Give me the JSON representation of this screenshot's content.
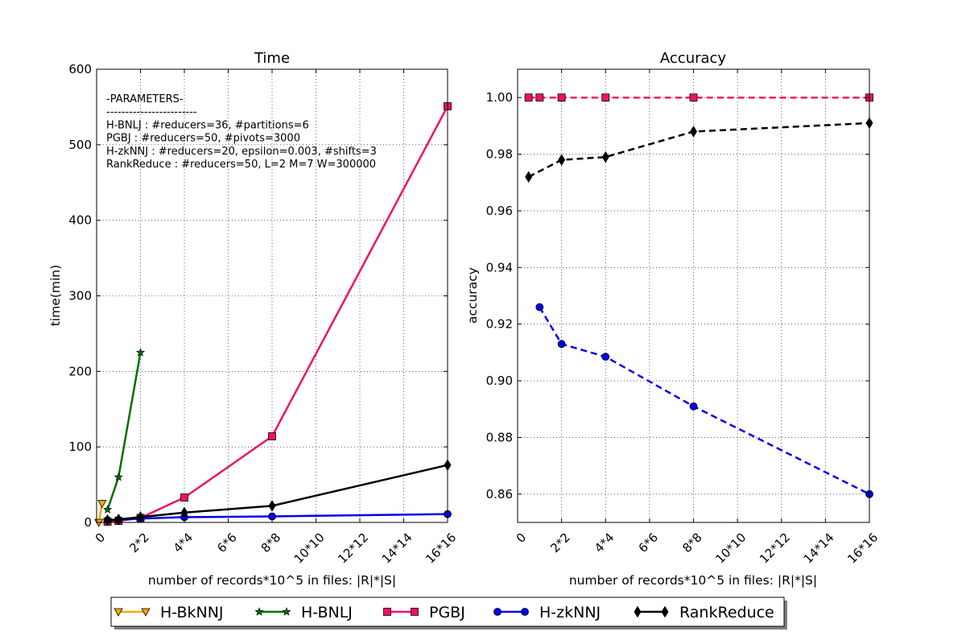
{
  "chart_data": [
    {
      "type": "line",
      "title": "Time",
      "xlabel": "number of records*10^5 in files: |R|*|S|",
      "ylabel": "time(min)",
      "xlim": [
        0,
        16
      ],
      "ylim": [
        0,
        600
      ],
      "grid": true,
      "x_ticks": [
        0,
        2,
        4,
        6,
        8,
        10,
        12,
        14,
        16
      ],
      "x_tick_labels": [
        "0",
        "2*2",
        "4*4",
        "6*6",
        "8*8",
        "10*10",
        "12*12",
        "14*14",
        "16*16"
      ],
      "y_ticks": [
        0,
        100,
        200,
        300,
        400,
        500,
        600
      ],
      "y_tick_labels": [
        "0",
        "100",
        "200",
        "300",
        "400",
        "500",
        "600"
      ],
      "annotation": [
        "-PARAMETERS-",
        "------------------------",
        "H-BNLJ : #reducers=36, #partitions=6",
        "PGBJ : #reducers=50, #pivots=3000",
        "H-zkNNJ : #reducers=20, epsilon=0.003, #shifts=3",
        "RankReduce : #reducers=50, L=2 M=7 W=300000"
      ],
      "series": [
        {
          "name": "H-BkNNJ",
          "x": [
            0.1,
            0.25
          ],
          "y": [
            0,
            25
          ]
        },
        {
          "name": "H-BNLJ",
          "x": [
            0.5,
            1,
            2
          ],
          "y": [
            17,
            60,
            225
          ]
        },
        {
          "name": "PGBJ",
          "x": [
            0.5,
            1,
            2,
            4,
            8,
            16
          ],
          "y": [
            1,
            2,
            6,
            33,
            114,
            551
          ]
        },
        {
          "name": "H-zkNNJ",
          "x": [
            0.5,
            1,
            2,
            4,
            8,
            16
          ],
          "y": [
            3,
            3.5,
            5,
            7,
            8,
            11
          ]
        },
        {
          "name": "RankReduce",
          "x": [
            0.5,
            1,
            2,
            4,
            8,
            16
          ],
          "y": [
            3,
            4,
            7,
            13,
            22,
            76
          ]
        }
      ]
    },
    {
      "type": "line",
      "title": "Accuracy",
      "xlabel": "number of records*10^5 in files: |R|*|S|",
      "ylabel": "accuracy",
      "xlim": [
        0,
        16
      ],
      "ylim": [
        0.85,
        1.01
      ],
      "grid": true,
      "x_ticks": [
        0,
        2,
        4,
        6,
        8,
        10,
        12,
        14,
        16
      ],
      "x_tick_labels": [
        "0",
        "2*2",
        "4*4",
        "6*6",
        "8*8",
        "10*10",
        "12*12",
        "14*14",
        "16*16"
      ],
      "y_ticks": [
        0.86,
        0.88,
        0.9,
        0.92,
        0.94,
        0.96,
        0.98,
        1.0
      ],
      "y_tick_labels": [
        "0.86",
        "0.88",
        "0.90",
        "0.92",
        "0.94",
        "0.96",
        "0.98",
        "1.00"
      ],
      "series": [
        {
          "name": "PGBJ",
          "x": [
            0.5,
            1,
            2,
            4,
            8,
            16
          ],
          "y": [
            1.0,
            1.0,
            1.0,
            1.0,
            1.0,
            1.0
          ]
        },
        {
          "name": "H-zkNNJ",
          "x": [
            1,
            2,
            4,
            8,
            16
          ],
          "y": [
            0.926,
            0.913,
            0.9085,
            0.891,
            0.86
          ]
        },
        {
          "name": "RankReduce",
          "x": [
            0.5,
            2,
            4,
            8,
            16
          ],
          "y": [
            0.972,
            0.978,
            0.979,
            0.988,
            0.991
          ]
        }
      ]
    }
  ],
  "legend": {
    "placement": "bottom-center",
    "entries": [
      {
        "name": "H-BkNNJ",
        "color": "#ffa500",
        "marker": "triangle-down",
        "fill": "#ffa500"
      },
      {
        "name": "H-BNLJ",
        "color": "#007000",
        "marker": "star",
        "fill": "#007000"
      },
      {
        "name": "PGBJ",
        "color": "#ee1166",
        "marker": "square",
        "fill": "#ee1166"
      },
      {
        "name": "H-zkNNJ",
        "color": "#0000ee",
        "marker": "circle",
        "fill": "#0000ee"
      },
      {
        "name": "RankReduce",
        "color": "#000000",
        "marker": "diamond",
        "fill": "#000000"
      }
    ]
  },
  "styles": {
    "time": {
      "H-BkNNJ": {
        "dash": "solid"
      },
      "H-BNLJ": {
        "dash": "solid"
      },
      "PGBJ": {
        "dash": "solid"
      },
      "H-zkNNJ": {
        "dash": "solid"
      },
      "RankReduce": {
        "dash": "solid"
      }
    },
    "accuracy": {
      "PGBJ": {
        "dash": "dashed"
      },
      "H-zkNNJ": {
        "dash": "dashed"
      },
      "RankReduce": {
        "dash": "dashed"
      }
    }
  }
}
